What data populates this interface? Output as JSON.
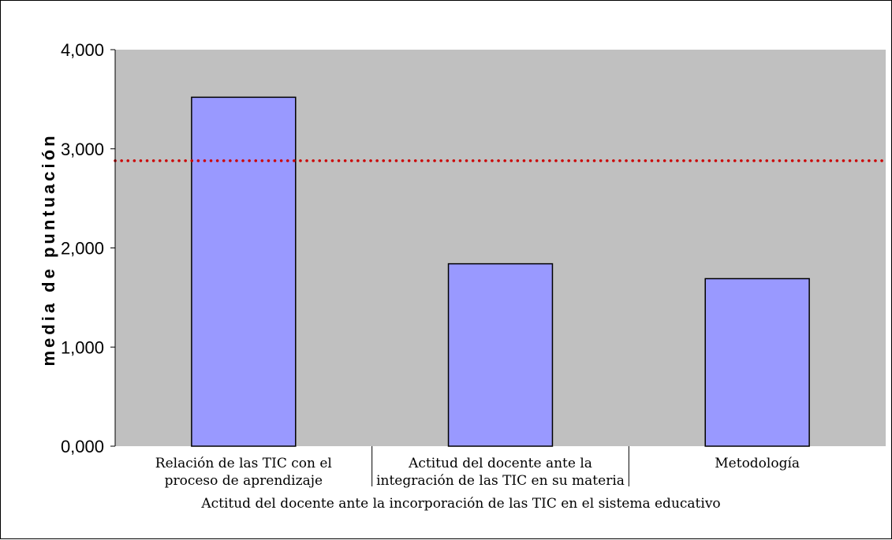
{
  "chart_data": {
    "type": "bar",
    "categories": [
      [
        "Relación de las TIC con el",
        "proceso de aprendizaje"
      ],
      [
        "Actitud del docente ante la",
        "integración de las TIC en su materia"
      ],
      [
        "Metodología"
      ]
    ],
    "values": [
      3.52,
      1.84,
      1.69
    ],
    "reference_line": 2.88,
    "ylim": [
      0,
      4
    ],
    "yticks": [
      0,
      1,
      2,
      3,
      4
    ],
    "ytick_labels": [
      "0,000",
      "1,000",
      "2,000",
      "3,000",
      "4,000"
    ],
    "ylabel": "media de puntuación",
    "xlabel": "Actitud del docente ante la incorporación de las TIC  en el sistema educativo",
    "title": "",
    "grid": false,
    "legend": "none"
  },
  "colors": {
    "plot_background": "#c0c0c0",
    "bar_fill": "#9999ff",
    "bar_stroke": "#000000",
    "reference_line": "#cc0000"
  }
}
